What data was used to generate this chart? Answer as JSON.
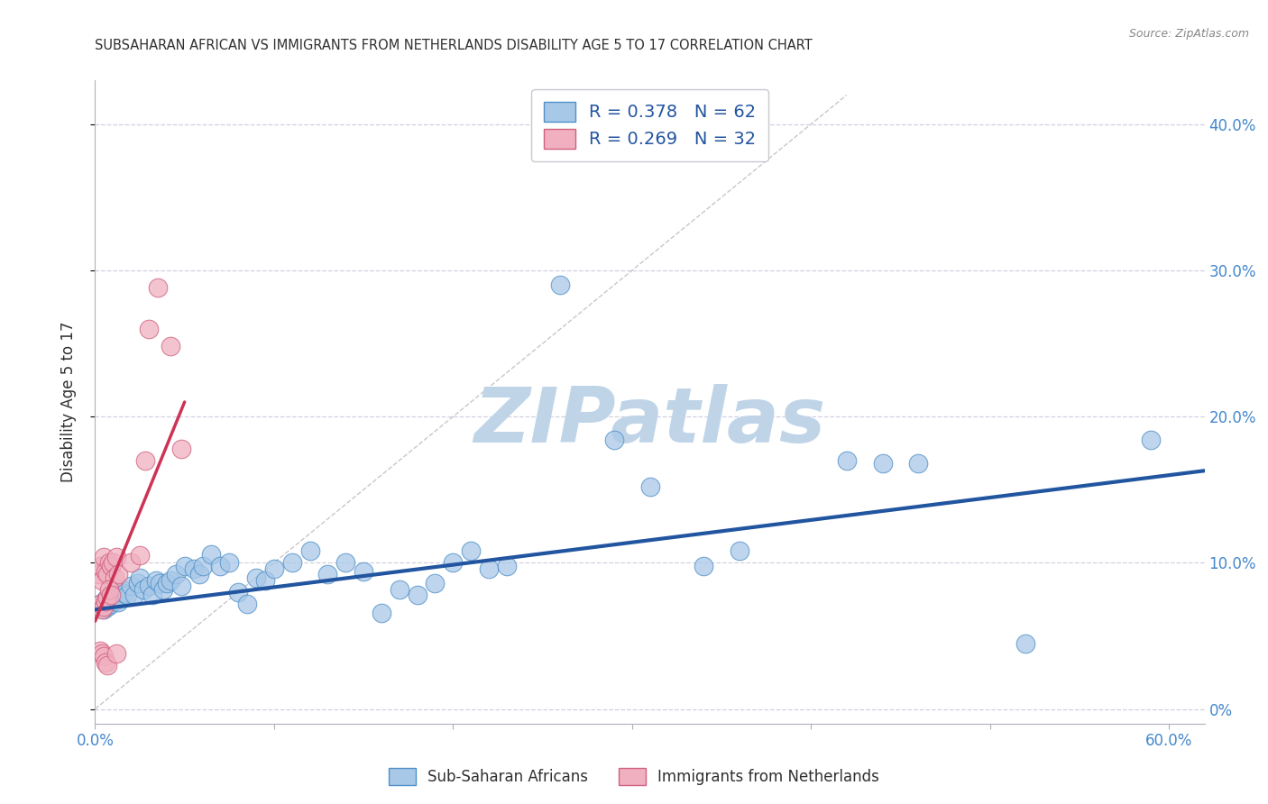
{
  "title": "SUBSAHARAN AFRICAN VS IMMIGRANTS FROM NETHERLANDS DISABILITY AGE 5 TO 17 CORRELATION CHART",
  "source": "Source: ZipAtlas.com",
  "ylabel": "Disability Age 5 to 17",
  "right_ytick_vals": [
    0.0,
    0.1,
    0.2,
    0.3,
    0.4
  ],
  "right_ytick_labels": [
    "0%",
    "10.0%",
    "20.0%",
    "30.0%",
    "40.0%"
  ],
  "xlim": [
    0.0,
    0.62
  ],
  "ylim": [
    -0.01,
    0.43
  ],
  "legend_label_blue": "Sub-Saharan Africans",
  "legend_label_pink": "Immigrants from Netherlands",
  "blue_color": "#a8c8e8",
  "blue_edge_color": "#5090c8",
  "blue_line_color": "#2255a0",
  "pink_color": "#f0b0c0",
  "pink_edge_color": "#d06080",
  "pink_line_color": "#cc3355",
  "diagonal_color": "#c8c8c8",
  "grid_color": "#d0d0e0",
  "watermark_color": "#c0d4e8",
  "title_color": "#303030",
  "axis_color": "#4488cc",
  "blue_scatter": [
    [
      0.003,
      0.072
    ],
    [
      0.005,
      0.068
    ],
    [
      0.006,
      0.075
    ],
    [
      0.007,
      0.07
    ],
    [
      0.008,
      0.078
    ],
    [
      0.009,
      0.072
    ],
    [
      0.01,
      0.08
    ],
    [
      0.011,
      0.074
    ],
    [
      0.012,
      0.076
    ],
    [
      0.013,
      0.073
    ],
    [
      0.015,
      0.082
    ],
    [
      0.016,
      0.079
    ],
    [
      0.018,
      0.078
    ],
    [
      0.02,
      0.084
    ],
    [
      0.022,
      0.078
    ],
    [
      0.024,
      0.086
    ],
    [
      0.025,
      0.09
    ],
    [
      0.027,
      0.082
    ],
    [
      0.03,
      0.084
    ],
    [
      0.032,
      0.078
    ],
    [
      0.034,
      0.088
    ],
    [
      0.036,
      0.086
    ],
    [
      0.038,
      0.082
    ],
    [
      0.04,
      0.086
    ],
    [
      0.042,
      0.088
    ],
    [
      0.045,
      0.092
    ],
    [
      0.048,
      0.084
    ],
    [
      0.05,
      0.098
    ],
    [
      0.055,
      0.096
    ],
    [
      0.058,
      0.092
    ],
    [
      0.06,
      0.098
    ],
    [
      0.065,
      0.106
    ],
    [
      0.07,
      0.098
    ],
    [
      0.075,
      0.1
    ],
    [
      0.08,
      0.08
    ],
    [
      0.085,
      0.072
    ],
    [
      0.09,
      0.09
    ],
    [
      0.095,
      0.088
    ],
    [
      0.1,
      0.096
    ],
    [
      0.11,
      0.1
    ],
    [
      0.12,
      0.108
    ],
    [
      0.13,
      0.092
    ],
    [
      0.14,
      0.1
    ],
    [
      0.15,
      0.094
    ],
    [
      0.16,
      0.066
    ],
    [
      0.17,
      0.082
    ],
    [
      0.18,
      0.078
    ],
    [
      0.19,
      0.086
    ],
    [
      0.2,
      0.1
    ],
    [
      0.21,
      0.108
    ],
    [
      0.22,
      0.096
    ],
    [
      0.23,
      0.098
    ],
    [
      0.26,
      0.29
    ],
    [
      0.29,
      0.184
    ],
    [
      0.31,
      0.152
    ],
    [
      0.34,
      0.098
    ],
    [
      0.36,
      0.108
    ],
    [
      0.42,
      0.17
    ],
    [
      0.44,
      0.168
    ],
    [
      0.46,
      0.168
    ],
    [
      0.52,
      0.045
    ],
    [
      0.59,
      0.184
    ]
  ],
  "pink_scatter": [
    [
      0.002,
      0.092
    ],
    [
      0.003,
      0.098
    ],
    [
      0.004,
      0.088
    ],
    [
      0.005,
      0.104
    ],
    [
      0.006,
      0.094
    ],
    [
      0.007,
      0.092
    ],
    [
      0.008,
      0.1
    ],
    [
      0.009,
      0.098
    ],
    [
      0.01,
      0.1
    ],
    [
      0.011,
      0.09
    ],
    [
      0.012,
      0.104
    ],
    [
      0.013,
      0.092
    ],
    [
      0.003,
      0.072
    ],
    [
      0.004,
      0.068
    ],
    [
      0.005,
      0.07
    ],
    [
      0.006,
      0.074
    ],
    [
      0.007,
      0.076
    ],
    [
      0.008,
      0.082
    ],
    [
      0.009,
      0.078
    ],
    [
      0.003,
      0.04
    ],
    [
      0.004,
      0.038
    ],
    [
      0.005,
      0.036
    ],
    [
      0.006,
      0.032
    ],
    [
      0.007,
      0.03
    ],
    [
      0.012,
      0.038
    ],
    [
      0.02,
      0.1
    ],
    [
      0.025,
      0.105
    ],
    [
      0.028,
      0.17
    ],
    [
      0.03,
      0.26
    ],
    [
      0.035,
      0.288
    ],
    [
      0.042,
      0.248
    ],
    [
      0.048,
      0.178
    ]
  ],
  "blue_line_x": [
    0.0,
    0.62
  ],
  "blue_line_y": [
    0.068,
    0.163
  ],
  "pink_line_x": [
    0.0,
    0.05
  ],
  "pink_line_y": [
    0.06,
    0.21
  ],
  "diag_line_x": [
    0.0,
    0.42
  ],
  "diag_line_y": [
    0.0,
    0.42
  ]
}
